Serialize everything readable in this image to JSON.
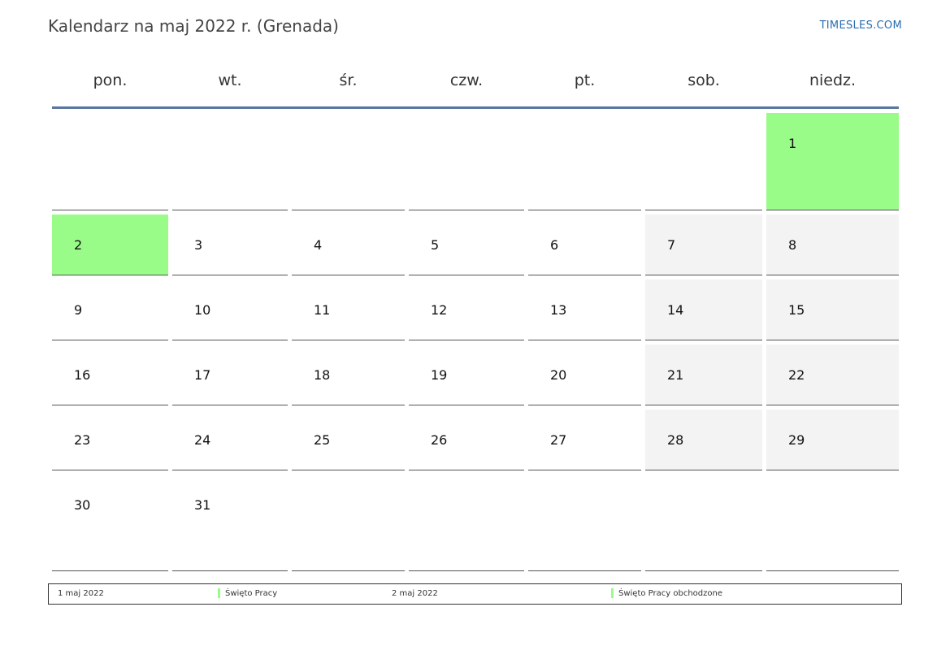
{
  "header": {
    "title": "Kalendarz na maj 2022 r. (Grenada)",
    "site": "TIMESLES.COM"
  },
  "weekdays": [
    "pon.",
    "wt.",
    "śr.",
    "czw.",
    "pt.",
    "sob.",
    "niedz."
  ],
  "weeks": [
    [
      {
        "d": ""
      },
      {
        "d": ""
      },
      {
        "d": ""
      },
      {
        "d": ""
      },
      {
        "d": ""
      },
      {
        "d": ""
      },
      {
        "d": "1",
        "holiday": true
      }
    ],
    [
      {
        "d": "2",
        "holiday": true
      },
      {
        "d": "3"
      },
      {
        "d": "4"
      },
      {
        "d": "5"
      },
      {
        "d": "6"
      },
      {
        "d": "7",
        "weekend": true
      },
      {
        "d": "8",
        "weekend": true
      }
    ],
    [
      {
        "d": "9"
      },
      {
        "d": "10"
      },
      {
        "d": "11"
      },
      {
        "d": "12"
      },
      {
        "d": "13"
      },
      {
        "d": "14",
        "weekend": true
      },
      {
        "d": "15",
        "weekend": true
      }
    ],
    [
      {
        "d": "16"
      },
      {
        "d": "17"
      },
      {
        "d": "18"
      },
      {
        "d": "19"
      },
      {
        "d": "20"
      },
      {
        "d": "21",
        "weekend": true
      },
      {
        "d": "22",
        "weekend": true
      }
    ],
    [
      {
        "d": "23"
      },
      {
        "d": "24"
      },
      {
        "d": "25"
      },
      {
        "d": "26"
      },
      {
        "d": "27"
      },
      {
        "d": "28",
        "weekend": true
      },
      {
        "d": "29",
        "weekend": true
      }
    ],
    [
      {
        "d": "30"
      },
      {
        "d": "31"
      },
      {
        "d": ""
      },
      {
        "d": ""
      },
      {
        "d": ""
      },
      {
        "d": ""
      },
      {
        "d": ""
      }
    ]
  ],
  "legend": {
    "date1": "1 maj 2022",
    "name1": "Święto Pracy",
    "date2": "2 maj 2022",
    "name2": "Święto Pracy obchodzone"
  },
  "colors": {
    "holiday": "#9afc88",
    "weekend": "#f3f3f3",
    "rule": "#5a76a0",
    "link": "#2a6db0"
  }
}
